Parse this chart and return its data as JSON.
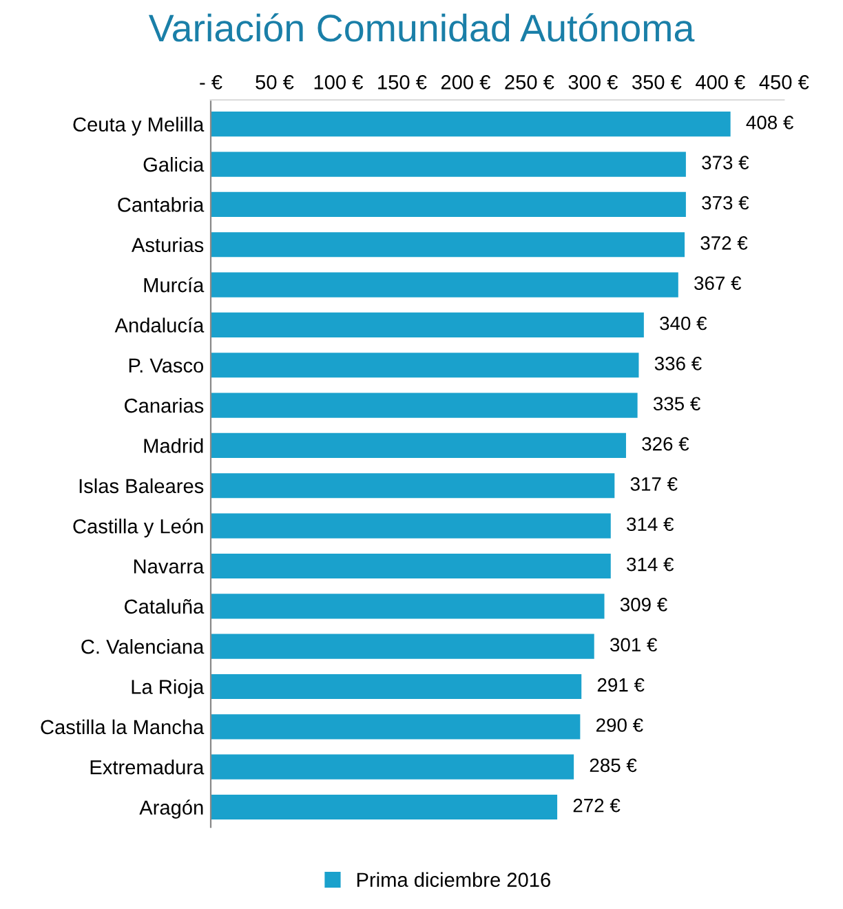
{
  "chart_data": {
    "type": "bar",
    "orientation": "horizontal",
    "title": "Variación Comunidad Autónoma",
    "categories": [
      "Ceuta y Melilla",
      "Galicia",
      "Cantabria",
      "Asturias",
      "Murcía",
      "Andalucía",
      "P. Vasco",
      "Canarias",
      "Madrid",
      "Islas Baleares",
      "Castilla y León",
      "Navarra",
      "Cataluña",
      "C. Valenciana",
      "La Rioja",
      "Castilla la Mancha",
      "Extremadura",
      "Aragón"
    ],
    "series": [
      {
        "name": "Prima diciembre 2016",
        "color": "#1aa1cc",
        "values": [
          408,
          373,
          373,
          372,
          367,
          340,
          336,
          335,
          326,
          317,
          314,
          314,
          309,
          301,
          291,
          290,
          285,
          272
        ],
        "value_labels": [
          "408 €",
          "373 €",
          "373 €",
          "372 €",
          "367 €",
          "340 €",
          "336 €",
          "335 €",
          "326 €",
          "317 €",
          "314 €",
          "314 €",
          "309 €",
          "301 €",
          "291 €",
          "290 €",
          "285 €",
          "272 €"
        ]
      }
    ],
    "xlim": [
      0,
      450
    ],
    "xticks": [
      {
        "value": 0,
        "label": "- €"
      },
      {
        "value": 50,
        "label": "50 €"
      },
      {
        "value": 100,
        "label": "100 €"
      },
      {
        "value": 150,
        "label": "150 €"
      },
      {
        "value": 200,
        "label": "200 €"
      },
      {
        "value": 250,
        "label": "250 €"
      },
      {
        "value": 300,
        "label": "300 €"
      },
      {
        "value": 350,
        "label": "350 €"
      },
      {
        "value": 400,
        "label": "400 €"
      },
      {
        "value": 450,
        "label": "450 €"
      }
    ],
    "grid": false,
    "legend": "bottom"
  }
}
